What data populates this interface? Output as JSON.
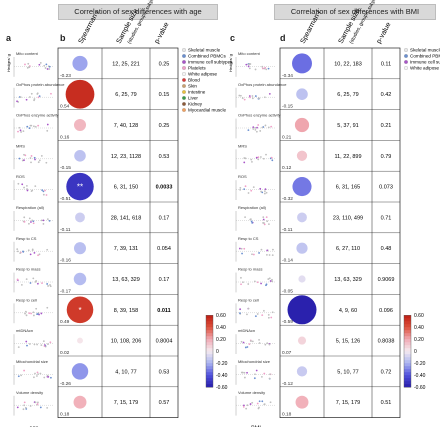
{
  "titles": {
    "left": "Correlation of sex differences with age",
    "right": "Correlation of sex differences with BMI"
  },
  "panel_letters": {
    "a": "a",
    "b": "b",
    "c": "c",
    "d": "d"
  },
  "column_headers": {
    "spearman": "Spearman r",
    "sample_size": "Sample size",
    "sample_size_sub": "(studies, groups, subjects)",
    "p_value": "p-value"
  },
  "x_axis_labels": {
    "left": "age",
    "right": "BMI"
  },
  "y_axis_label": "Hedges' g",
  "legend": {
    "left": [
      {
        "label": "Skeletal muscle",
        "color": "#e8e8e8"
      },
      {
        "label": "Combined PBMCs",
        "color": "#6a8fd0"
      },
      {
        "label": "Immune cell subtypes",
        "color": "#a855c8"
      },
      {
        "label": "Platelets",
        "color": "#f0a0c8"
      },
      {
        "label": "White adipose",
        "color": "#f5f5f5"
      },
      {
        "label": "Blood",
        "color": "#d93a3a"
      },
      {
        "label": "Skin",
        "color": "#c8a070"
      },
      {
        "label": "Intestine",
        "color": "#e8c040"
      },
      {
        "label": "Liver",
        "color": "#3a9a4a"
      },
      {
        "label": "Kidney",
        "color": "#8b5a3a"
      },
      {
        "label": "Myocardial muscle",
        "color": "#f0a060"
      }
    ],
    "right": [
      {
        "label": "Skeletal muscle",
        "color": "#e8e8e8"
      },
      {
        "label": "Combined PBMCs",
        "color": "#6a8fd0"
      },
      {
        "label": "Immune cell subtypes",
        "color": "#a855c8"
      },
      {
        "label": "White adipose",
        "color": "#f5f5f5"
      }
    ]
  },
  "colorbar": {
    "ticks": [
      "0.60",
      "0.40",
      "0.20",
      "0",
      "-0.20",
      "-0.40",
      "-0.60"
    ]
  },
  "significance_marker": "*",
  "chart_data": [
    {
      "type": "table",
      "panel": "b",
      "x_variable": "age",
      "rows": [
        {
          "label": "Mito content",
          "r": -0.23,
          "n": "12, 25, 221",
          "p": "0.25",
          "bold": false
        },
        {
          "label": "OxPhos protein abundance",
          "r": 0.54,
          "n": "6, 25, 79",
          "p": "0.15",
          "bold": false
        },
        {
          "label": "OxPhos enzyme activity",
          "r": 0.16,
          "n": "7, 40, 128",
          "p": "0.25",
          "bold": false
        },
        {
          "label": "MRS",
          "r": -0.15,
          "n": "12, 23, 1128",
          "p": "0.53",
          "bold": false
        },
        {
          "label": "ROS",
          "r": -0.51,
          "n": "6, 31, 150",
          "p": "0.0033",
          "bold": true,
          "sig": 2
        },
        {
          "label": "Respiration (all)",
          "r": -0.11,
          "n": "28, 141, 618",
          "p": "0.17",
          "bold": false
        },
        {
          "label": "Resp to CS",
          "r": -0.16,
          "n": "7, 39, 131",
          "p": "0.054",
          "bold": false
        },
        {
          "label": "Resp to mass",
          "r": -0.17,
          "n": "13, 63, 329",
          "p": "0.17",
          "bold": false
        },
        {
          "label": "Resp to cell",
          "r": 0.49,
          "n": "8, 39, 158",
          "p": "0.011",
          "bold": true,
          "sig": 1
        },
        {
          "label": "mtDNAcn",
          "r": 0.02,
          "n": "10, 108, 206",
          "p": "0.8004",
          "bold": false
        },
        {
          "label": "Mitochondrial size",
          "r": -0.26,
          "n": "4, 10, 77",
          "p": "0.53",
          "bold": false
        },
        {
          "label": "Volume density",
          "r": 0.18,
          "n": "7, 15, 179",
          "p": "0.57",
          "bold": false
        }
      ]
    },
    {
      "type": "table",
      "panel": "d",
      "x_variable": "BMI",
      "rows": [
        {
          "label": "Mito content",
          "r": -0.34,
          "n": "10, 22, 183",
          "p": "0.11",
          "bold": false
        },
        {
          "label": "OxPhos protein abundance",
          "r": -0.15,
          "n": "6, 25, 79",
          "p": "0.42",
          "bold": false
        },
        {
          "label": "OxPhos enzyme activity",
          "r": 0.21,
          "n": "5, 37, 91",
          "p": "0.21",
          "bold": false
        },
        {
          "label": "MRS",
          "r": 0.12,
          "n": "11, 22, 899",
          "p": "0.79",
          "bold": false
        },
        {
          "label": "ROS",
          "r": -0.32,
          "n": "6, 31, 165",
          "p": "0.073",
          "bold": false
        },
        {
          "label": "Respiration (all)",
          "r": -0.11,
          "n": "23, 110, 499",
          "p": "0.71",
          "bold": false
        },
        {
          "label": "Resp to CS",
          "r": -0.14,
          "n": "6, 27, 110",
          "p": "0.48",
          "bold": false
        },
        {
          "label": "Resp to mass",
          "r": -0.05,
          "n": "13, 63, 329",
          "p": "0.9069",
          "bold": false
        },
        {
          "label": "Resp to cell",
          "r": -0.59,
          "n": "4, 9, 60",
          "p": "0.096",
          "bold": false
        },
        {
          "label": "mtDNAcn",
          "r": 0.07,
          "n": "5, 15, 126",
          "p": "0.8038",
          "bold": false
        },
        {
          "label": "Mitochondrial size",
          "r": -0.12,
          "n": "5, 10, 77",
          "p": "0.72",
          "bold": false
        },
        {
          "label": "Volume density",
          "r": 0.18,
          "n": "7, 15, 179",
          "p": "0.51",
          "bold": false
        }
      ]
    }
  ]
}
